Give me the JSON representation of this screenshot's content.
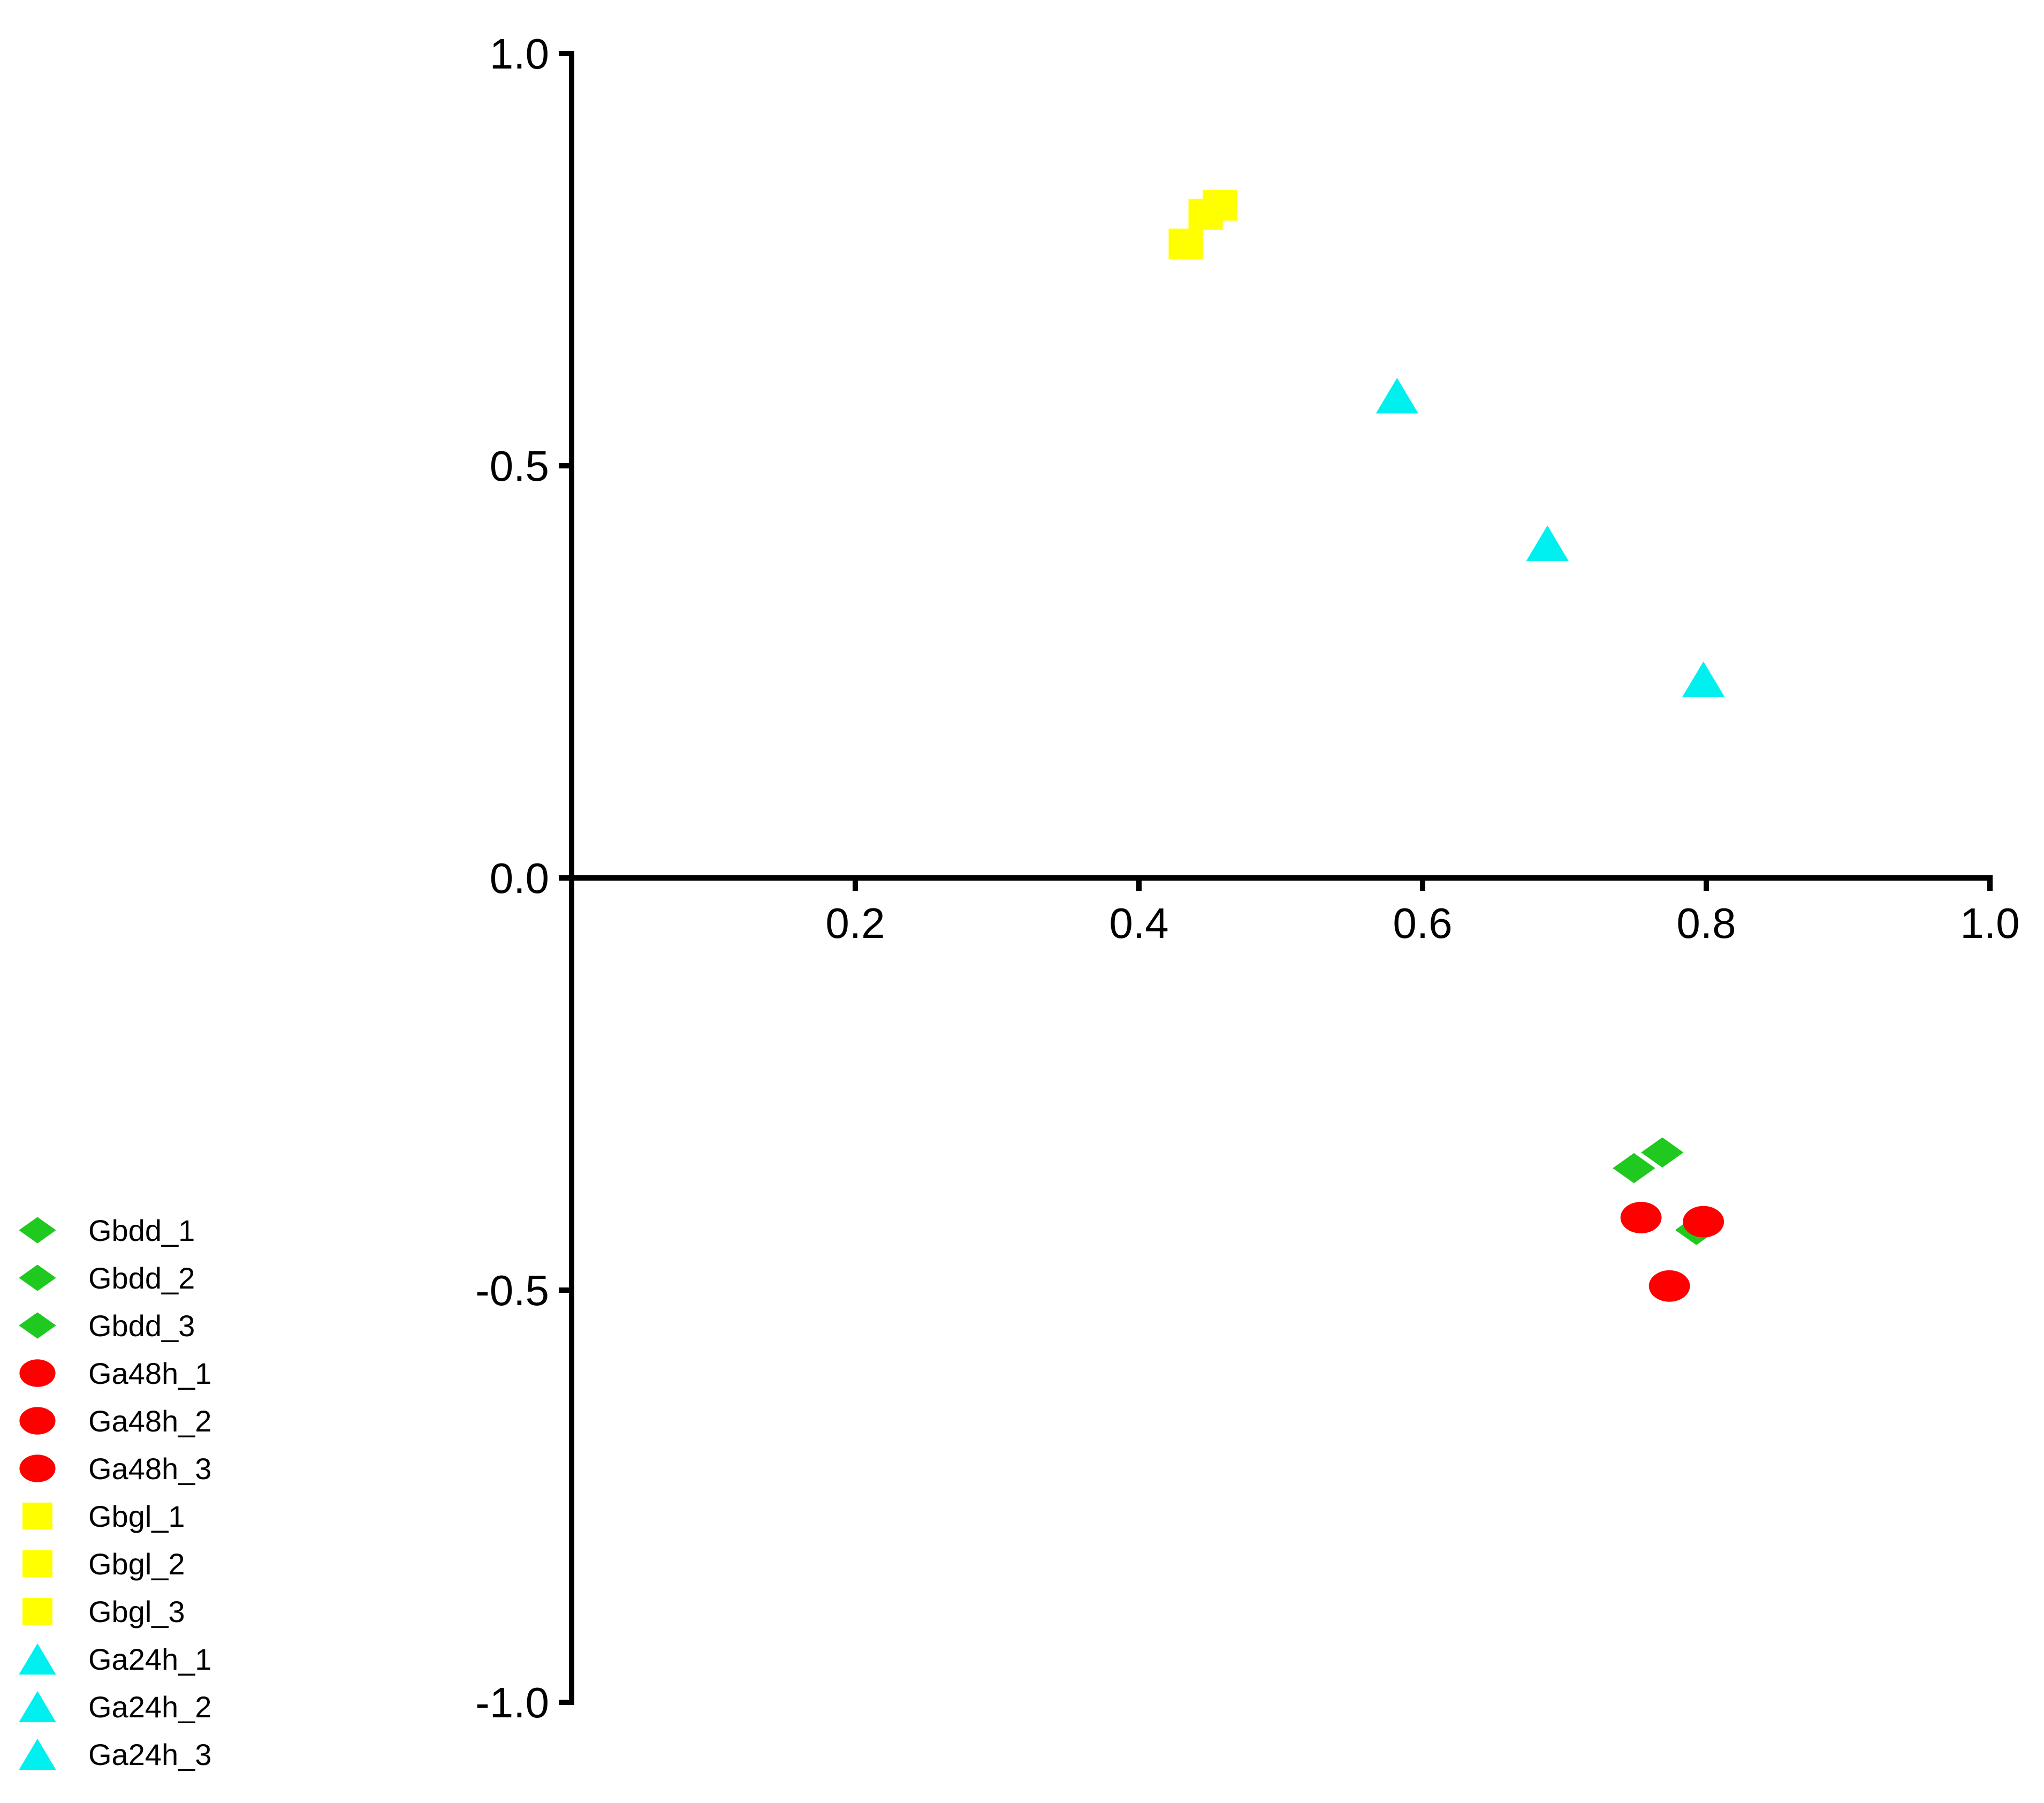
{
  "chart_data": {
    "type": "scatter",
    "title": "",
    "xlabel": "",
    "ylabel": "",
    "xlim": [
      0.0,
      1.0
    ],
    "ylim": [
      -1.0,
      1.0
    ],
    "x_ticks": [
      0.2,
      0.4,
      0.6,
      0.8,
      1.0
    ],
    "x_tick_labels": [
      "0.2",
      "0.4",
      "0.6",
      "0.8",
      "1.0"
    ],
    "y_ticks": [
      1.0,
      0.5,
      0.0,
      -0.5,
      -1.0
    ],
    "y_tick_labels": [
      "1.0",
      "0.5",
      "0.0",
      "-0.5",
      "-1.0"
    ],
    "grid": false,
    "legend_position": "bottom-left",
    "series": [
      {
        "name": "Gbdd_1",
        "marker": "diamond",
        "color": "#1fc91f",
        "points": [
          {
            "x": 0.749,
            "y": -0.352
          }
        ]
      },
      {
        "name": "Gbdd_2",
        "marker": "diamond",
        "color": "#1fc91f",
        "points": [
          {
            "x": 0.769,
            "y": -0.333
          }
        ]
      },
      {
        "name": "Gbdd_3",
        "marker": "diamond",
        "color": "#1fc91f",
        "points": [
          {
            "x": 0.793,
            "y": -0.427
          }
        ]
      },
      {
        "name": "Ga48h_1",
        "marker": "circle",
        "color": "#ff0000",
        "points": [
          {
            "x": 0.754,
            "y": -0.412
          }
        ]
      },
      {
        "name": "Ga48h_2",
        "marker": "circle",
        "color": "#ff0000",
        "points": [
          {
            "x": 0.798,
            "y": -0.417
          }
        ]
      },
      {
        "name": "Ga48h_3",
        "marker": "circle",
        "color": "#ff0000",
        "points": [
          {
            "x": 0.774,
            "y": -0.495
          }
        ]
      },
      {
        "name": "Gbgl_1",
        "marker": "square",
        "color": "#ffff00",
        "points": [
          {
            "x": 0.433,
            "y": 0.769
          }
        ]
      },
      {
        "name": "Gbgl_2",
        "marker": "square",
        "color": "#ffff00",
        "points": [
          {
            "x": 0.447,
            "y": 0.805
          }
        ]
      },
      {
        "name": "Gbgl_3",
        "marker": "square",
        "color": "#ffff00",
        "points": [
          {
            "x": 0.457,
            "y": 0.816
          }
        ]
      },
      {
        "name": "Ga24h_1",
        "marker": "triangle",
        "color": "#00f0f0",
        "points": [
          {
            "x": 0.582,
            "y": 0.585
          }
        ]
      },
      {
        "name": "Ga24h_2",
        "marker": "triangle",
        "color": "#00f0f0",
        "points": [
          {
            "x": 0.688,
            "y": 0.406
          }
        ]
      },
      {
        "name": "Ga24h_3",
        "marker": "triangle",
        "color": "#00f0f0",
        "points": [
          {
            "x": 0.798,
            "y": 0.241
          }
        ]
      }
    ]
  }
}
